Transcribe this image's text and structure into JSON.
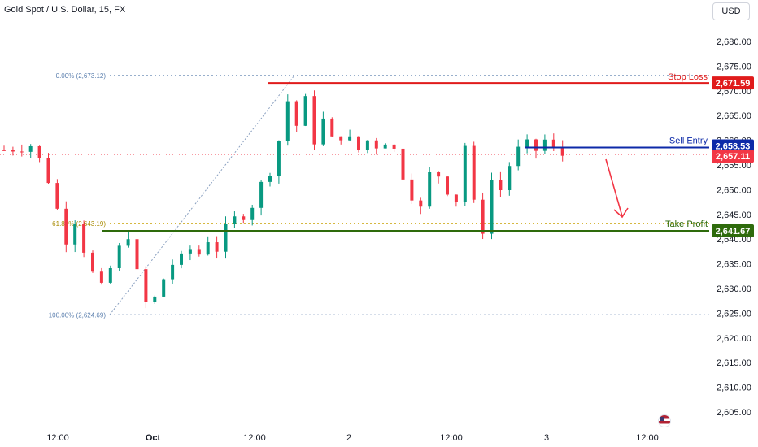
{
  "header": {
    "title": "Gold Spot / U.S. Dollar, 15, FX",
    "currency_button": "USD"
  },
  "fib": {
    "top_label": "0.00% (2,673.12)",
    "mid_label": "61.80% (2,643.19)",
    "bottom_label": "100.00% (2,624.69)",
    "top_value": 2673.12,
    "mid_value": 2643.19,
    "bottom_value": 2624.69
  },
  "levels": {
    "stop_loss": {
      "label": "Stop Loss",
      "value": 2671.59,
      "price_text": "2,671.59",
      "color": "#e01b1b"
    },
    "sell_entry": {
      "label": "Sell Entry",
      "value": 2658.53,
      "price_text": "2,658.53",
      "color": "#0d2aa8"
    },
    "take_profit": {
      "label": "Take Profit",
      "value": 2641.67,
      "price_text": "2,641.67",
      "color": "#2e6b0c"
    }
  },
  "current_price": {
    "value": 2657.11,
    "price_text": "2,657.11",
    "color": "#f23645"
  },
  "colors": {
    "up": "#089981",
    "down": "#f23645",
    "arrow": "#f23645"
  },
  "chart_data": {
    "type": "candlestick",
    "title": "Gold Spot / U.S. Dollar, 15, FX",
    "y_axis": {
      "min": 2605,
      "max": 2680,
      "step": 5,
      "tick_labels": [
        "2,605.00",
        "2,610.00",
        "2,615.00",
        "2,620.00",
        "2,625.00",
        "2,630.00",
        "2,635.00",
        "2,640.00",
        "2,645.00",
        "2,650.00",
        "2,655.00",
        "2,660.00",
        "2,665.00",
        "2,670.00",
        "2,675.00",
        "2,680.00"
      ]
    },
    "x_axis": {
      "tick_labels": [
        "12:00",
        "Oct",
        "12:00",
        "2",
        "12:00",
        "3",
        "12:00"
      ]
    },
    "close_path": [
      [
        0,
        2658
      ],
      [
        3,
        2659
      ],
      [
        4,
        2656
      ],
      [
        5,
        2652
      ],
      [
        6,
        2646
      ],
      [
        7,
        2640
      ],
      [
        8,
        2644
      ],
      [
        9,
        2638
      ],
      [
        10,
        2633
      ],
      [
        11,
        2630
      ],
      [
        12,
        2634
      ],
      [
        13,
        2638
      ],
      [
        14,
        2641
      ],
      [
        15,
        2633
      ],
      [
        16,
        2627
      ],
      [
        17,
        2628
      ],
      [
        18,
        2632
      ],
      [
        19,
        2635
      ],
      [
        20,
        2636
      ],
      [
        21,
        2638
      ],
      [
        22,
        2637
      ],
      [
        23,
        2640
      ],
      [
        24,
        2638
      ],
      [
        25,
        2642
      ],
      [
        26,
        2644
      ],
      [
        27,
        2645
      ],
      [
        28,
        2647
      ],
      [
        29,
        2651
      ],
      [
        30,
        2654
      ],
      [
        31,
        2660
      ],
      [
        32,
        2668
      ],
      [
        33,
        2663
      ],
      [
        34,
        2668
      ],
      [
        35,
        2660
      ],
      [
        36,
        2664
      ],
      [
        37,
        2660
      ],
      [
        38,
        2661
      ],
      [
        39,
        2660
      ],
      [
        40,
        2658
      ],
      [
        41,
        2660
      ],
      [
        42,
        2659
      ],
      [
        43,
        2660
      ],
      [
        44,
        2658
      ],
      [
        45,
        2653
      ],
      [
        46,
        2649
      ],
      [
        47,
        2646
      ],
      [
        48,
        2653
      ],
      [
        49,
        2653
      ],
      [
        50,
        2650
      ],
      [
        51,
        2648
      ],
      [
        52,
        2659
      ],
      [
        53,
        2647
      ],
      [
        54,
        2642
      ],
      [
        55,
        2652
      ],
      [
        56,
        2650
      ],
      [
        57,
        2655
      ],
      [
        58,
        2658
      ],
      [
        59,
        2659
      ],
      [
        60,
        2658
      ],
      [
        61,
        2660
      ],
      [
        62,
        2658
      ],
      [
        63,
        2657
      ]
    ],
    "annotations": [
      "Stop Loss",
      "Sell Entry",
      "Take Profit"
    ],
    "grid": false
  }
}
